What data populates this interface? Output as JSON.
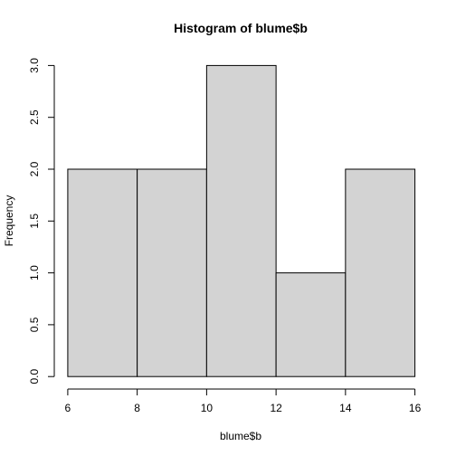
{
  "chart_data": {
    "type": "bar",
    "title": "Histogram of blume$b",
    "xlabel": "blume$b",
    "ylabel": "Frequency",
    "bins": [
      {
        "start": 6,
        "end": 8,
        "count": 2
      },
      {
        "start": 8,
        "end": 10,
        "count": 2
      },
      {
        "start": 10,
        "end": 12,
        "count": 3
      },
      {
        "start": 12,
        "end": 14,
        "count": 1
      },
      {
        "start": 14,
        "end": 16,
        "count": 2
      }
    ],
    "xlim": [
      6,
      16
    ],
    "ylim": [
      0,
      3
    ],
    "x_ticks": [
      "6",
      "8",
      "10",
      "12",
      "14",
      "16"
    ],
    "y_ticks": [
      "0.0",
      "0.5",
      "1.0",
      "1.5",
      "2.0",
      "2.5",
      "3.0"
    ],
    "grid": false,
    "colors": {
      "bar_fill": "#d3d3d3",
      "bar_stroke": "#000000",
      "axis": "#000000",
      "background": "#ffffff"
    }
  }
}
